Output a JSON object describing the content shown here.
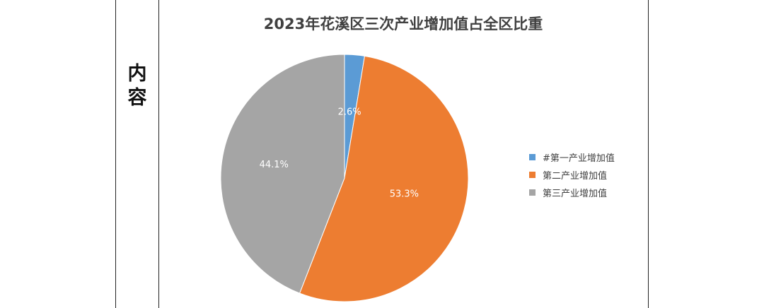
{
  "side_label": [
    "内",
    "容"
  ],
  "chart_data": {
    "type": "pie",
    "title": "2023年花溪区三次产业增加值占全区比重",
    "categories": [
      "#第一产业增加值",
      "第二产业增加值",
      "第三产业增加值"
    ],
    "values": [
      2.6,
      53.3,
      44.1
    ],
    "labels": [
      "2.6%",
      "53.3%",
      "44.1%"
    ],
    "colors": [
      "#5B9BD5",
      "#ED7D31",
      "#A5A5A5"
    ],
    "legend_position": "right",
    "start": "top",
    "direction": "clockwise"
  }
}
